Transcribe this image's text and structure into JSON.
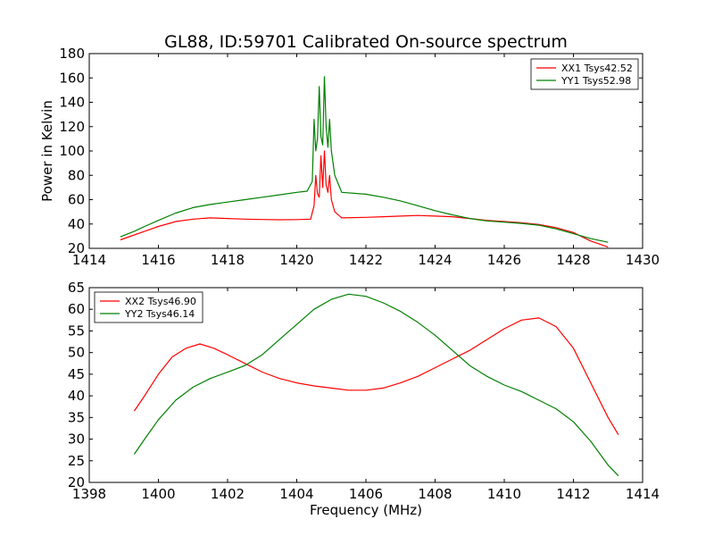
{
  "chart_data": [
    {
      "type": "line",
      "title": "GL88, ID:59701 Calibrated On-source spectrum",
      "xlabel": "",
      "ylabel": "Power in Kelvin",
      "xlim": [
        1414,
        1430
      ],
      "ylim": [
        20,
        180
      ],
      "xticks": [
        1414,
        1416,
        1418,
        1420,
        1422,
        1424,
        1426,
        1428,
        1430
      ],
      "yticks": [
        20,
        40,
        60,
        80,
        100,
        120,
        140,
        160,
        180
      ],
      "grid": false,
      "legend_position": "top-right",
      "series": [
        {
          "name": "XX1 Tsys42.52",
          "color": "#ff0000",
          "points": [
            [
              1414.9,
              27
            ],
            [
              1415.3,
              31
            ],
            [
              1415.6,
              34
            ],
            [
              1416.0,
              38
            ],
            [
              1416.5,
              42
            ],
            [
              1417.0,
              44
            ],
            [
              1417.5,
              45
            ],
            [
              1418.0,
              44.5
            ],
            [
              1418.5,
              44
            ],
            [
              1419.0,
              43.7
            ],
            [
              1419.5,
              43.5
            ],
            [
              1420.0,
              43.6
            ],
            [
              1420.4,
              44
            ],
            [
              1420.5,
              55
            ],
            [
              1420.55,
              80
            ],
            [
              1420.6,
              65
            ],
            [
              1420.65,
              62
            ],
            [
              1420.7,
              96
            ],
            [
              1420.75,
              70
            ],
            [
              1420.8,
              100
            ],
            [
              1420.85,
              72
            ],
            [
              1420.9,
              66
            ],
            [
              1420.95,
              80
            ],
            [
              1421.0,
              60
            ],
            [
              1421.1,
              50
            ],
            [
              1421.3,
              45
            ],
            [
              1422.0,
              45.5
            ],
            [
              1422.5,
              46
            ],
            [
              1423.0,
              46.5
            ],
            [
              1423.5,
              47
            ],
            [
              1424.0,
              46.5
            ],
            [
              1424.5,
              46
            ],
            [
              1425.0,
              44.5
            ],
            [
              1425.5,
              43
            ],
            [
              1426.0,
              42
            ],
            [
              1426.5,
              41
            ],
            [
              1427.0,
              39.5
            ],
            [
              1427.5,
              37
            ],
            [
              1428.0,
              33
            ],
            [
              1428.5,
              26
            ],
            [
              1429.0,
              21
            ]
          ]
        },
        {
          "name": "YY1 Tsys52.98",
          "color": "#008000",
          "points": [
            [
              1414.9,
              29.5
            ],
            [
              1415.3,
              34
            ],
            [
              1415.6,
              38
            ],
            [
              1416.0,
              43
            ],
            [
              1416.5,
              49
            ],
            [
              1417.0,
              53.5
            ],
            [
              1417.5,
              56
            ],
            [
              1418.0,
              58
            ],
            [
              1418.5,
              60
            ],
            [
              1419.0,
              62
            ],
            [
              1419.5,
              64
            ],
            [
              1420.0,
              66
            ],
            [
              1420.3,
              67
            ],
            [
              1420.45,
              75
            ],
            [
              1420.5,
              126
            ],
            [
              1420.55,
              100
            ],
            [
              1420.6,
              110
            ],
            [
              1420.65,
              153
            ],
            [
              1420.7,
              112
            ],
            [
              1420.75,
              105
            ],
            [
              1420.8,
              161
            ],
            [
              1420.85,
              120
            ],
            [
              1420.9,
              103
            ],
            [
              1420.95,
              126
            ],
            [
              1421.0,
              100
            ],
            [
              1421.1,
              80
            ],
            [
              1421.3,
              66
            ],
            [
              1422.0,
              64.5
            ],
            [
              1422.5,
              62
            ],
            [
              1423.0,
              59
            ],
            [
              1423.5,
              55
            ],
            [
              1424.0,
              51
            ],
            [
              1424.5,
              47.5
            ],
            [
              1425.0,
              44.5
            ],
            [
              1425.5,
              42.5
            ],
            [
              1426.0,
              41.5
            ],
            [
              1426.5,
              40.5
            ],
            [
              1427.0,
              39
            ],
            [
              1427.5,
              36
            ],
            [
              1428.0,
              32
            ],
            [
              1428.5,
              28
            ],
            [
              1429.0,
              25
            ]
          ]
        }
      ]
    },
    {
      "type": "line",
      "title": "",
      "xlabel": "Frequency (MHz)",
      "ylabel": "",
      "xlim": [
        1398,
        1414
      ],
      "ylim": [
        20,
        65
      ],
      "xticks": [
        1398,
        1400,
        1402,
        1404,
        1406,
        1408,
        1410,
        1412,
        1414
      ],
      "yticks": [
        20,
        25,
        30,
        35,
        40,
        45,
        50,
        55,
        60,
        65
      ],
      "grid": false,
      "legend_position": "top-left",
      "series": [
        {
          "name": "XX2 Tsys46.90",
          "color": "#ff0000",
          "points": [
            [
              1399.3,
              36.5
            ],
            [
              1399.6,
              40
            ],
            [
              1400.0,
              45
            ],
            [
              1400.4,
              49
            ],
            [
              1400.8,
              51
            ],
            [
              1401.2,
              52
            ],
            [
              1401.6,
              51
            ],
            [
              1402.0,
              49.5
            ],
            [
              1402.5,
              47.5
            ],
            [
              1403.0,
              45.5
            ],
            [
              1403.5,
              44
            ],
            [
              1404.0,
              43
            ],
            [
              1404.5,
              42.3
            ],
            [
              1405.0,
              41.8
            ],
            [
              1405.5,
              41.3
            ],
            [
              1406.0,
              41.3
            ],
            [
              1406.5,
              41.8
            ],
            [
              1407.0,
              43
            ],
            [
              1407.5,
              44.5
            ],
            [
              1408.0,
              46.5
            ],
            [
              1408.5,
              48.5
            ],
            [
              1409.0,
              50.5
            ],
            [
              1409.5,
              53
            ],
            [
              1410.0,
              55.5
            ],
            [
              1410.5,
              57.5
            ],
            [
              1411.0,
              58
            ],
            [
              1411.5,
              56
            ],
            [
              1412.0,
              51
            ],
            [
              1412.5,
              43
            ],
            [
              1413.0,
              35
            ],
            [
              1413.3,
              31
            ]
          ]
        },
        {
          "name": "YY2 Tsys46.14",
          "color": "#008000",
          "points": [
            [
              1399.3,
              26.5
            ],
            [
              1399.6,
              30
            ],
            [
              1400.0,
              34.5
            ],
            [
              1400.5,
              39
            ],
            [
              1401.0,
              42
            ],
            [
              1401.5,
              44
            ],
            [
              1402.0,
              45.5
            ],
            [
              1402.5,
              47
            ],
            [
              1403.0,
              49.5
            ],
            [
              1403.5,
              53
            ],
            [
              1404.0,
              56.5
            ],
            [
              1404.5,
              60
            ],
            [
              1405.0,
              62.3
            ],
            [
              1405.5,
              63.5
            ],
            [
              1406.0,
              63
            ],
            [
              1406.5,
              61.5
            ],
            [
              1407.0,
              59.5
            ],
            [
              1407.5,
              57
            ],
            [
              1408.0,
              54
            ],
            [
              1408.5,
              50.5
            ],
            [
              1409.0,
              47
            ],
            [
              1409.5,
              44.5
            ],
            [
              1410.0,
              42.5
            ],
            [
              1410.5,
              41
            ],
            [
              1411.0,
              39
            ],
            [
              1411.5,
              37
            ],
            [
              1412.0,
              34
            ],
            [
              1412.5,
              29.5
            ],
            [
              1413.0,
              24
            ],
            [
              1413.3,
              21.5
            ]
          ]
        }
      ]
    }
  ]
}
